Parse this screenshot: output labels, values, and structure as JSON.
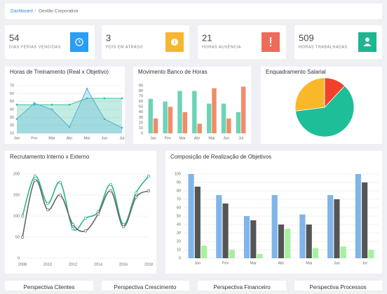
{
  "breadcrumb": {
    "items": [
      "Dashboard",
      "Gestão Corporativa"
    ],
    "separator": "/"
  },
  "kpis": [
    {
      "value": 54,
      "label": "DIAS FÉRIAS VENCIDAS"
    },
    {
      "value": 3,
      "label": "PDIS EM ATRASO"
    },
    {
      "value": 21,
      "label": "HORAS AUSÊNCIA"
    },
    {
      "value": 509,
      "label": "HORAS TRABALHADAS"
    }
  ],
  "chart_data": [
    {
      "type": "area",
      "title": "Horas de Treinamento (Real x Objetivo)",
      "categories": [
        "Jan",
        "Fev",
        "Mar",
        "Abr",
        "Mai",
        "Jun",
        "Jul"
      ],
      "series": [
        {
          "color": "#3cc1a0",
          "values": [
            46,
            46,
            46,
            46,
            54,
            54,
            54
          ]
        },
        {
          "color": "#4fb3d9",
          "values": [
            28,
            48,
            40,
            18,
            66,
            28,
            17
          ]
        }
      ],
      "ylim": [
        10,
        70
      ],
      "yticks": [
        10,
        20,
        30,
        40,
        50,
        60,
        70
      ],
      "grid": true
    },
    {
      "type": "bar",
      "title": "Movimento Banco de Horas",
      "categories": [
        "Jan",
        "Fev",
        "Mar",
        "Abr",
        "Mai",
        "Jun",
        "Jul"
      ],
      "series": [
        {
          "color": "#6dd3b8",
          "values": [
            65,
            60,
            80,
            80,
            56,
            56,
            40
          ]
        },
        {
          "color": "#f08c68",
          "values": [
            28,
            50,
            40,
            18,
            85,
            28,
            88
          ]
        }
      ],
      "ylim": [
        0,
        90
      ],
      "yticks": [
        0,
        10,
        20,
        30,
        40,
        50,
        60,
        70,
        80,
        90
      ],
      "grid": false
    },
    {
      "type": "pie",
      "title": "Enquadramento Salarial",
      "values": [
        12,
        61,
        27
      ],
      "colors": [
        "#f2412c",
        "#1dbf98",
        "#f9b82a"
      ]
    },
    {
      "type": "line",
      "title": "Recrutamento Interno x Externo",
      "smooth": true,
      "x": [
        2008,
        2009,
        2010,
        2011,
        2012,
        2013,
        2014,
        2015,
        2016,
        2017,
        2018
      ],
      "series": [
        {
          "color": "#2bb58f",
          "values": [
            100,
            195,
            130,
            180,
            70,
            95,
            110,
            175,
            80,
            155,
            195
          ]
        },
        {
          "color": "#666666",
          "values": [
            50,
            185,
            115,
            150,
            80,
            65,
            105,
            160,
            75,
            145,
            160
          ]
        }
      ],
      "xlim": [
        2008,
        2018
      ],
      "xticks": [
        2008,
        2010,
        2012,
        2014,
        2016,
        2018
      ],
      "ylim": [
        0,
        200
      ],
      "yticks": [
        0,
        50,
        100,
        150,
        200
      ],
      "grid": true
    },
    {
      "type": "bar",
      "title": "Composição de Realização de Objetivos",
      "categories": [
        "Jan",
        "Fev",
        "Mar",
        "Abr",
        "Mai",
        "Jun",
        "Jul"
      ],
      "series": [
        {
          "color": "#7fb5ea",
          "values": [
            100,
            75,
            50,
            75,
            52,
            75,
            100
          ]
        },
        {
          "color": "#555555",
          "values": [
            85,
            65,
            45,
            40,
            40,
            70,
            90
          ]
        },
        {
          "color": "#a6f0a0",
          "values": [
            15,
            10,
            5,
            35,
            12,
            14,
            10
          ]
        }
      ],
      "ylim": [
        0,
        100
      ],
      "yticks": [
        0,
        10,
        20,
        30,
        40,
        50,
        60,
        70,
        80,
        90,
        100
      ],
      "grid": true
    }
  ],
  "perspectives": [
    "Perspectiva Clientes",
    "Perspectiva Crescimento",
    "Perspectiva Financeiro",
    "Perspectiva Processos"
  ]
}
